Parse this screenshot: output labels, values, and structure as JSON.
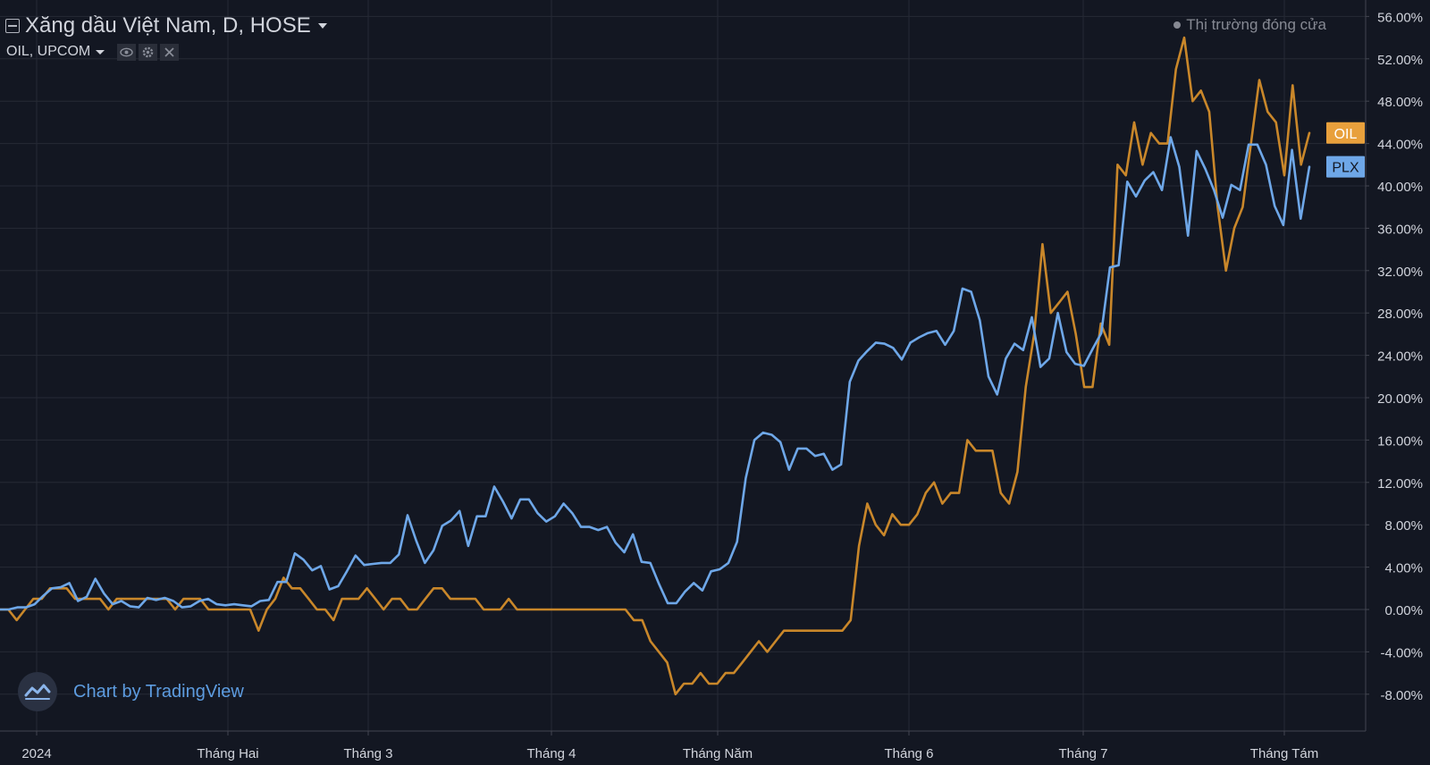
{
  "header": {
    "title": "Xăng dầu Việt Nam, D, HOSE",
    "compare_label": "OIL, UPCOM",
    "market_status": "Thị trường đóng cửa"
  },
  "watermark": {
    "text": "Chart by TradingView"
  },
  "icons": [
    "collapse-icon",
    "eye-icon",
    "gear-icon",
    "close-icon",
    "chevron-down-icon",
    "tradingview-logo"
  ],
  "colors": {
    "background": "#131722",
    "grid": "#262a35",
    "axis_text": "#d1d4dc",
    "plx": "#6ea7e8",
    "oil": "#c9872a",
    "oil_badge": "#e8a03c",
    "plx_badge": "#6ea7e8"
  },
  "chart_data": {
    "type": "line",
    "x_ticks": [
      "2024",
      "Tháng Hai",
      "Tháng 3",
      "Tháng 4",
      "Tháng Năm",
      "Tháng 6",
      "Tháng 7",
      "Tháng Tám"
    ],
    "y_ticks": [
      "56.00%",
      "52.00%",
      "48.00%",
      "44.00%",
      "40.00%",
      "36.00%",
      "32.00%",
      "28.00%",
      "24.00%",
      "20.00%",
      "16.00%",
      "12.00%",
      "8.00%",
      "4.00%",
      "0.00%",
      "-4.00%",
      "-8.00%"
    ],
    "ylim": [
      -11,
      57
    ],
    "y_unit": "%",
    "grid": true,
    "series": [
      {
        "name": "PLX",
        "color": "#6ea7e8",
        "last_value_label": "PLX",
        "values": [
          0,
          0,
          0.2,
          0.2,
          0.5,
          1.3,
          2,
          2.1,
          2.5,
          0.8,
          1.2,
          2.9,
          1.5,
          0.5,
          0.8,
          0.3,
          0.2,
          1.1,
          0.9,
          1.1,
          0.8,
          0.2,
          0.3,
          0.8,
          1,
          0.5,
          0.4,
          0.5,
          0.4,
          0.3,
          0.8,
          0.9,
          2.6,
          2.6,
          5.3,
          4.7,
          3.7,
          4.1,
          1.9,
          2.2,
          3.6,
          5.1,
          4.2,
          4.3,
          4.4,
          4.4,
          5.2,
          8.9,
          6.5,
          4.4,
          5.6,
          7.9,
          8.4,
          9.3,
          6,
          8.8,
          8.8,
          11.6,
          10.2,
          8.6,
          10.4,
          10.4,
          9.1,
          8.3,
          8.8,
          10,
          9.1,
          7.8,
          7.8,
          7.5,
          7.8,
          6.3,
          5.4,
          7.1,
          4.5,
          4.4,
          2.4,
          0.6,
          0.6,
          1.7,
          2.5,
          1.8,
          3.6,
          3.8,
          4.4,
          6.4,
          12.4,
          16,
          16.7,
          16.5,
          15.8,
          13.2,
          15.2,
          15.2,
          14.5,
          14.7,
          13.2,
          13.7,
          21.5,
          23.5,
          24.4,
          25.2,
          25.1,
          24.7,
          23.6,
          25.2,
          25.7,
          26.1,
          26.3,
          25,
          26.3,
          30.3,
          30,
          27.3,
          22,
          20.3,
          23.7,
          25.1,
          24.5,
          27.6,
          22.9,
          23.7,
          28,
          24.3,
          23.2,
          23,
          24.6,
          26.1,
          32.3,
          32.5,
          40.4,
          39,
          40.5,
          41.3,
          39.6,
          44.6,
          41.8,
          35.3,
          43.3,
          41.6,
          39.6,
          37,
          40.1,
          39.6,
          43.9,
          43.9,
          42,
          38.1,
          36.3,
          43.4,
          36.9,
          41.8
        ]
      },
      {
        "name": "OIL",
        "color": "#c9872a",
        "last_value_label": "OIL",
        "values": [
          0,
          0,
          -1,
          0,
          1,
          1,
          2,
          2,
          2,
          1,
          1,
          1,
          1,
          0,
          1,
          1,
          1,
          1,
          1,
          1,
          1,
          0,
          1,
          1,
          1,
          0,
          0,
          0,
          0,
          0,
          0,
          -2,
          0,
          1,
          3,
          2,
          2,
          1,
          0,
          0,
          -1,
          1,
          1,
          1,
          2,
          1,
          0,
          1,
          1,
          0,
          0,
          1,
          2,
          2,
          1,
          1,
          1,
          1,
          0,
          0,
          0,
          1,
          0,
          0,
          0,
          0,
          0,
          0,
          0,
          0,
          0,
          0,
          0,
          0,
          0,
          0,
          -1,
          -1,
          -3,
          -4,
          -5,
          -8,
          -7,
          -7,
          -6,
          -7,
          -7,
          -6,
          -6,
          -5,
          -4,
          -3,
          -4,
          -3,
          -2,
          -2,
          -2,
          -2,
          -2,
          -2,
          -2,
          -2,
          -1,
          6,
          10,
          8,
          7,
          9,
          8,
          8,
          9,
          11,
          12,
          10,
          11,
          11,
          16,
          15,
          15,
          15,
          11,
          10,
          13,
          21,
          26,
          34.5,
          28,
          29,
          30,
          26,
          21,
          21,
          27,
          25,
          42,
          41,
          46,
          42,
          45,
          44,
          44,
          51,
          54,
          48,
          49,
          47,
          38,
          32,
          36,
          38,
          44,
          50,
          47,
          46,
          41,
          49.5,
          42,
          45
        ]
      }
    ]
  }
}
